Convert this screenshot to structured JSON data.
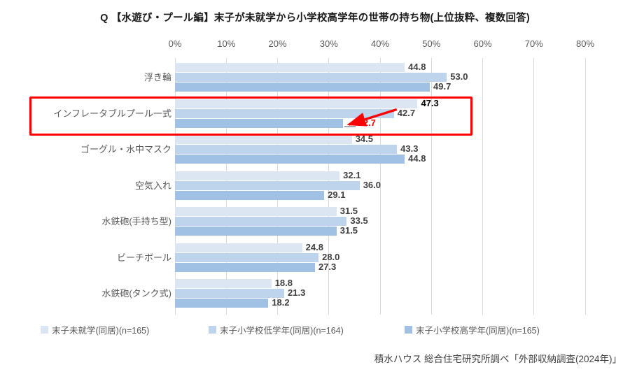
{
  "page": {
    "title": "Q 【水遊び・プール編】末子が未就学から小学校高学年の世帯の持ち物(上位抜粋、複数回答)",
    "source": "積水ハウス 総合住宅研究所調べ「外部収納調査(2024年)」"
  },
  "chart_data": {
    "type": "bar",
    "orientation": "horizontal",
    "title": "Q 【水遊び・プール編】末子が未就学から小学校高学年の世帯の持ち物(上位抜粋、複数回答)",
    "categories": [
      "浮き輪",
      "インフレータブルプール一式",
      "ゴーグル・水中マスク",
      "空気入れ",
      "水鉄砲(手持ち型)",
      "ビーチボール",
      "水鉄砲(タンク式)"
    ],
    "series": [
      {
        "name": "末子未就学(同居)(n=165)",
        "color": "#dce6f2",
        "values": [
          44.8,
          47.3,
          34.5,
          32.1,
          31.5,
          24.8,
          18.8
        ]
      },
      {
        "name": "末子小学校低学年(同居)(n=164)",
        "color": "#bed3ec",
        "values": [
          53.0,
          42.7,
          43.3,
          36.0,
          33.5,
          28.0,
          21.3
        ]
      },
      {
        "name": "末子小学校高学年(同居)(n=165)",
        "color": "#a0c0e4",
        "values": [
          49.7,
          32.7,
          44.8,
          29.1,
          31.5,
          27.3,
          18.2
        ]
      }
    ],
    "x_ticks": [
      "0%",
      "10%",
      "20%",
      "30%",
      "40%",
      "50%",
      "60%",
      "70%",
      "80%"
    ],
    "xlim": [
      0,
      80
    ],
    "value_label_decimals": 1,
    "grid": true,
    "legend_position": "bottom",
    "highlight": {
      "category": "インフレータブルプール一式",
      "category_index": 1,
      "box_color": "#ff0000",
      "black_label": {
        "series_index": 0,
        "point_index": 1,
        "color": "#000000"
      },
      "red_label": {
        "series_index": 2,
        "point_index": 1,
        "color": "#ff0000"
      },
      "arrow": {
        "from_value": 42.7,
        "from_series": 1,
        "to_value": 32.7,
        "to_series": 2,
        "color": "#ff0000"
      }
    }
  },
  "colors": {
    "grid": "#d9d9d9",
    "tick_label": "#595959",
    "category_label": "#595959",
    "value_label": "#404040",
    "legend_label": "#595959",
    "highlight": "#ff0000"
  }
}
